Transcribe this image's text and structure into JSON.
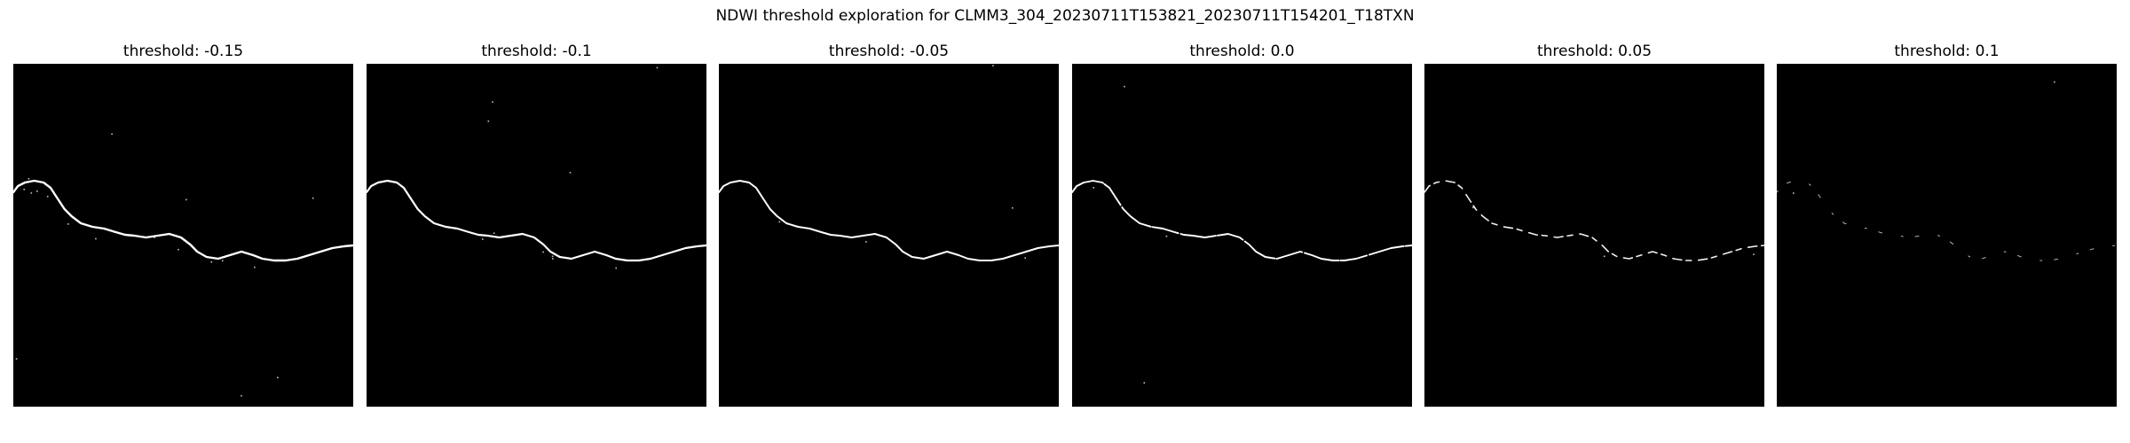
{
  "figure": {
    "title": "NDWI threshold exploration for CLMM3_304_20230711T153821_20230711T154201_T18TXN"
  },
  "panels": [
    {
      "title": "threshold: -0.15",
      "threshold": -0.15
    },
    {
      "title": "threshold: -0.1",
      "threshold": -0.1
    },
    {
      "title": "threshold: -0.05",
      "threshold": -0.05
    },
    {
      "title": "threshold: 0.0",
      "threshold": 0.0
    },
    {
      "title": "threshold: 0.05",
      "threshold": 0.05
    },
    {
      "title": "threshold: 0.1",
      "threshold": 0.1
    }
  ],
  "colors": {
    "background": "#000000",
    "water": "#ffffff"
  }
}
